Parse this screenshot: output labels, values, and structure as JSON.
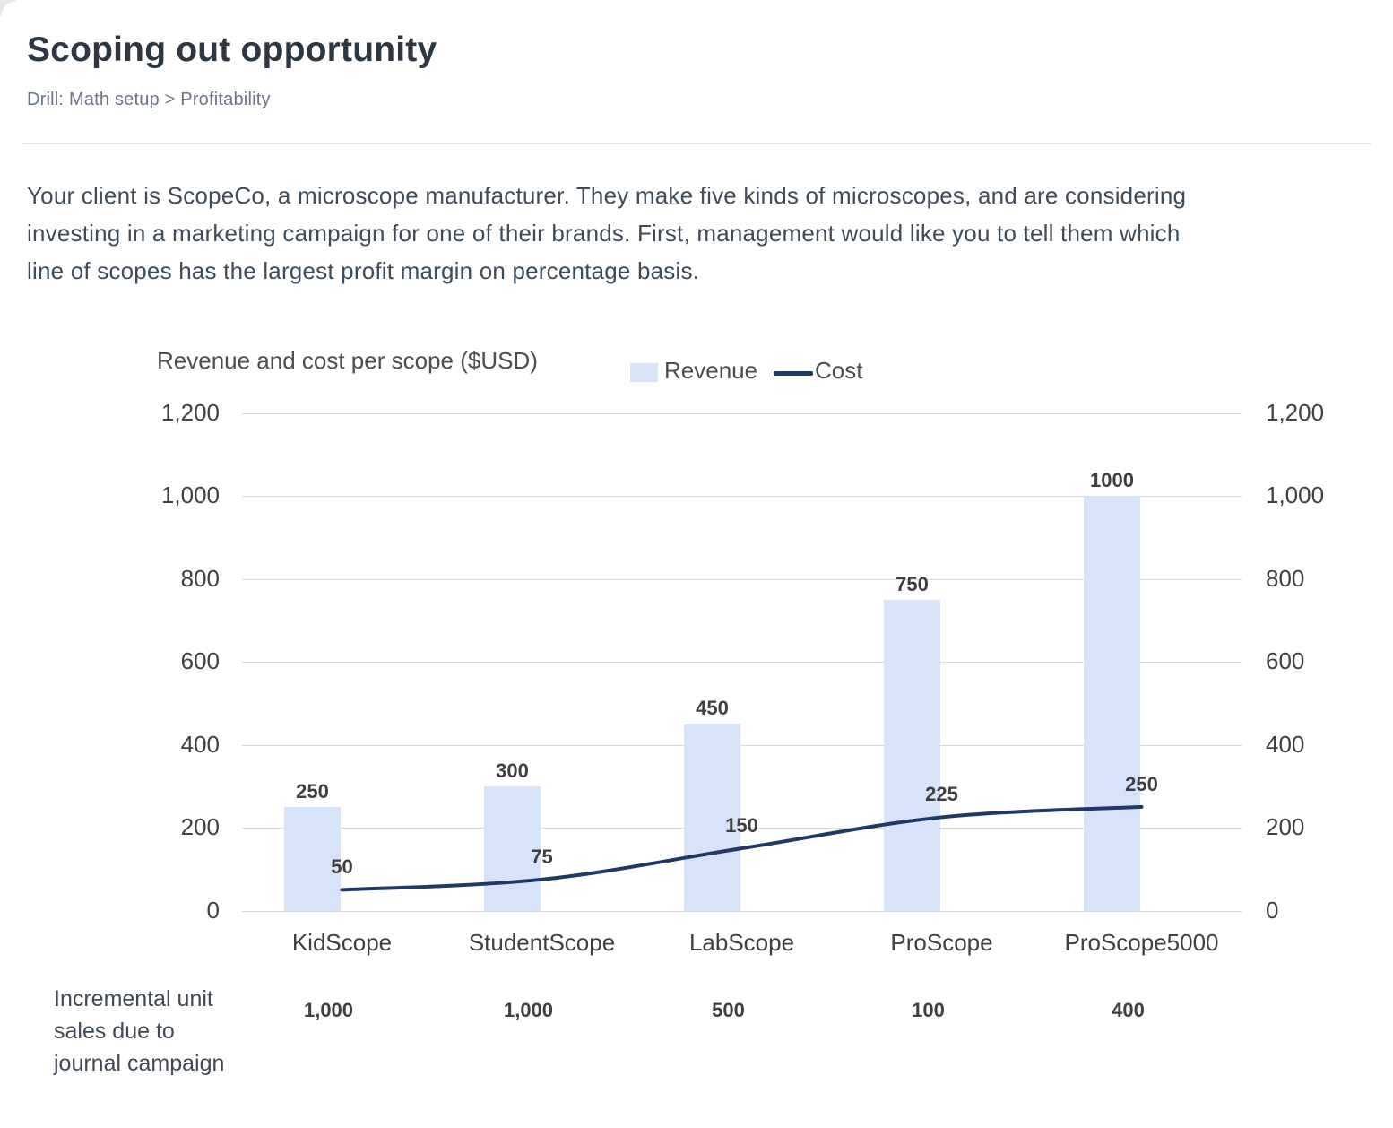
{
  "page": {
    "title": "Scoping out opportunity",
    "breadcrumb": "Drill: Math setup > Profitability",
    "paragraph_lines": [
      "Your client is ScopeCo, a microscope manufacturer. They make five kinds of microscopes, and are considering",
      "investing in a marketing campaign for one of their brands. First, management would like you to tell them which",
      "line of scopes has the largest profit margin on percentage basis."
    ]
  },
  "chart_data": {
    "type": "bar",
    "subtype": "combo bar + line, dual identical y-axes",
    "title": "Revenue and cost per scope ($USD)",
    "categories": [
      "KidScope",
      "StudentScope",
      "LabScope",
      "ProScope",
      "ProScope5000"
    ],
    "series": [
      {
        "name": "Revenue",
        "type": "bar",
        "color": "#d7e3f8",
        "values": [
          250,
          300,
          450,
          750,
          1000
        ],
        "data_labels": [
          "250",
          "300",
          "450",
          "750",
          "1000"
        ]
      },
      {
        "name": "Cost",
        "type": "line",
        "color": "#1f3864",
        "values": [
          50,
          75,
          150,
          225,
          250
        ],
        "data_labels": [
          "50",
          "75",
          "150",
          "225",
          "250"
        ]
      }
    ],
    "y_axis": {
      "min": 0,
      "max": 1200,
      "tick_step": 200,
      "tick_labels": [
        "0",
        "200",
        "400",
        "600",
        "800",
        "1,000",
        "1,200"
      ],
      "shown_on": "both sides"
    },
    "grid": true,
    "legend_position": "top",
    "footer_row": {
      "label_lines": [
        "Incremental unit",
        "sales due to",
        "journal campaign"
      ],
      "values": [
        "1,000",
        "1,000",
        "500",
        "100",
        "400"
      ]
    },
    "colors": {
      "bar": "#d7e3f8",
      "line": "#1f3864",
      "gridline": "#d9d9d9",
      "chart_text": "#404040"
    }
  }
}
